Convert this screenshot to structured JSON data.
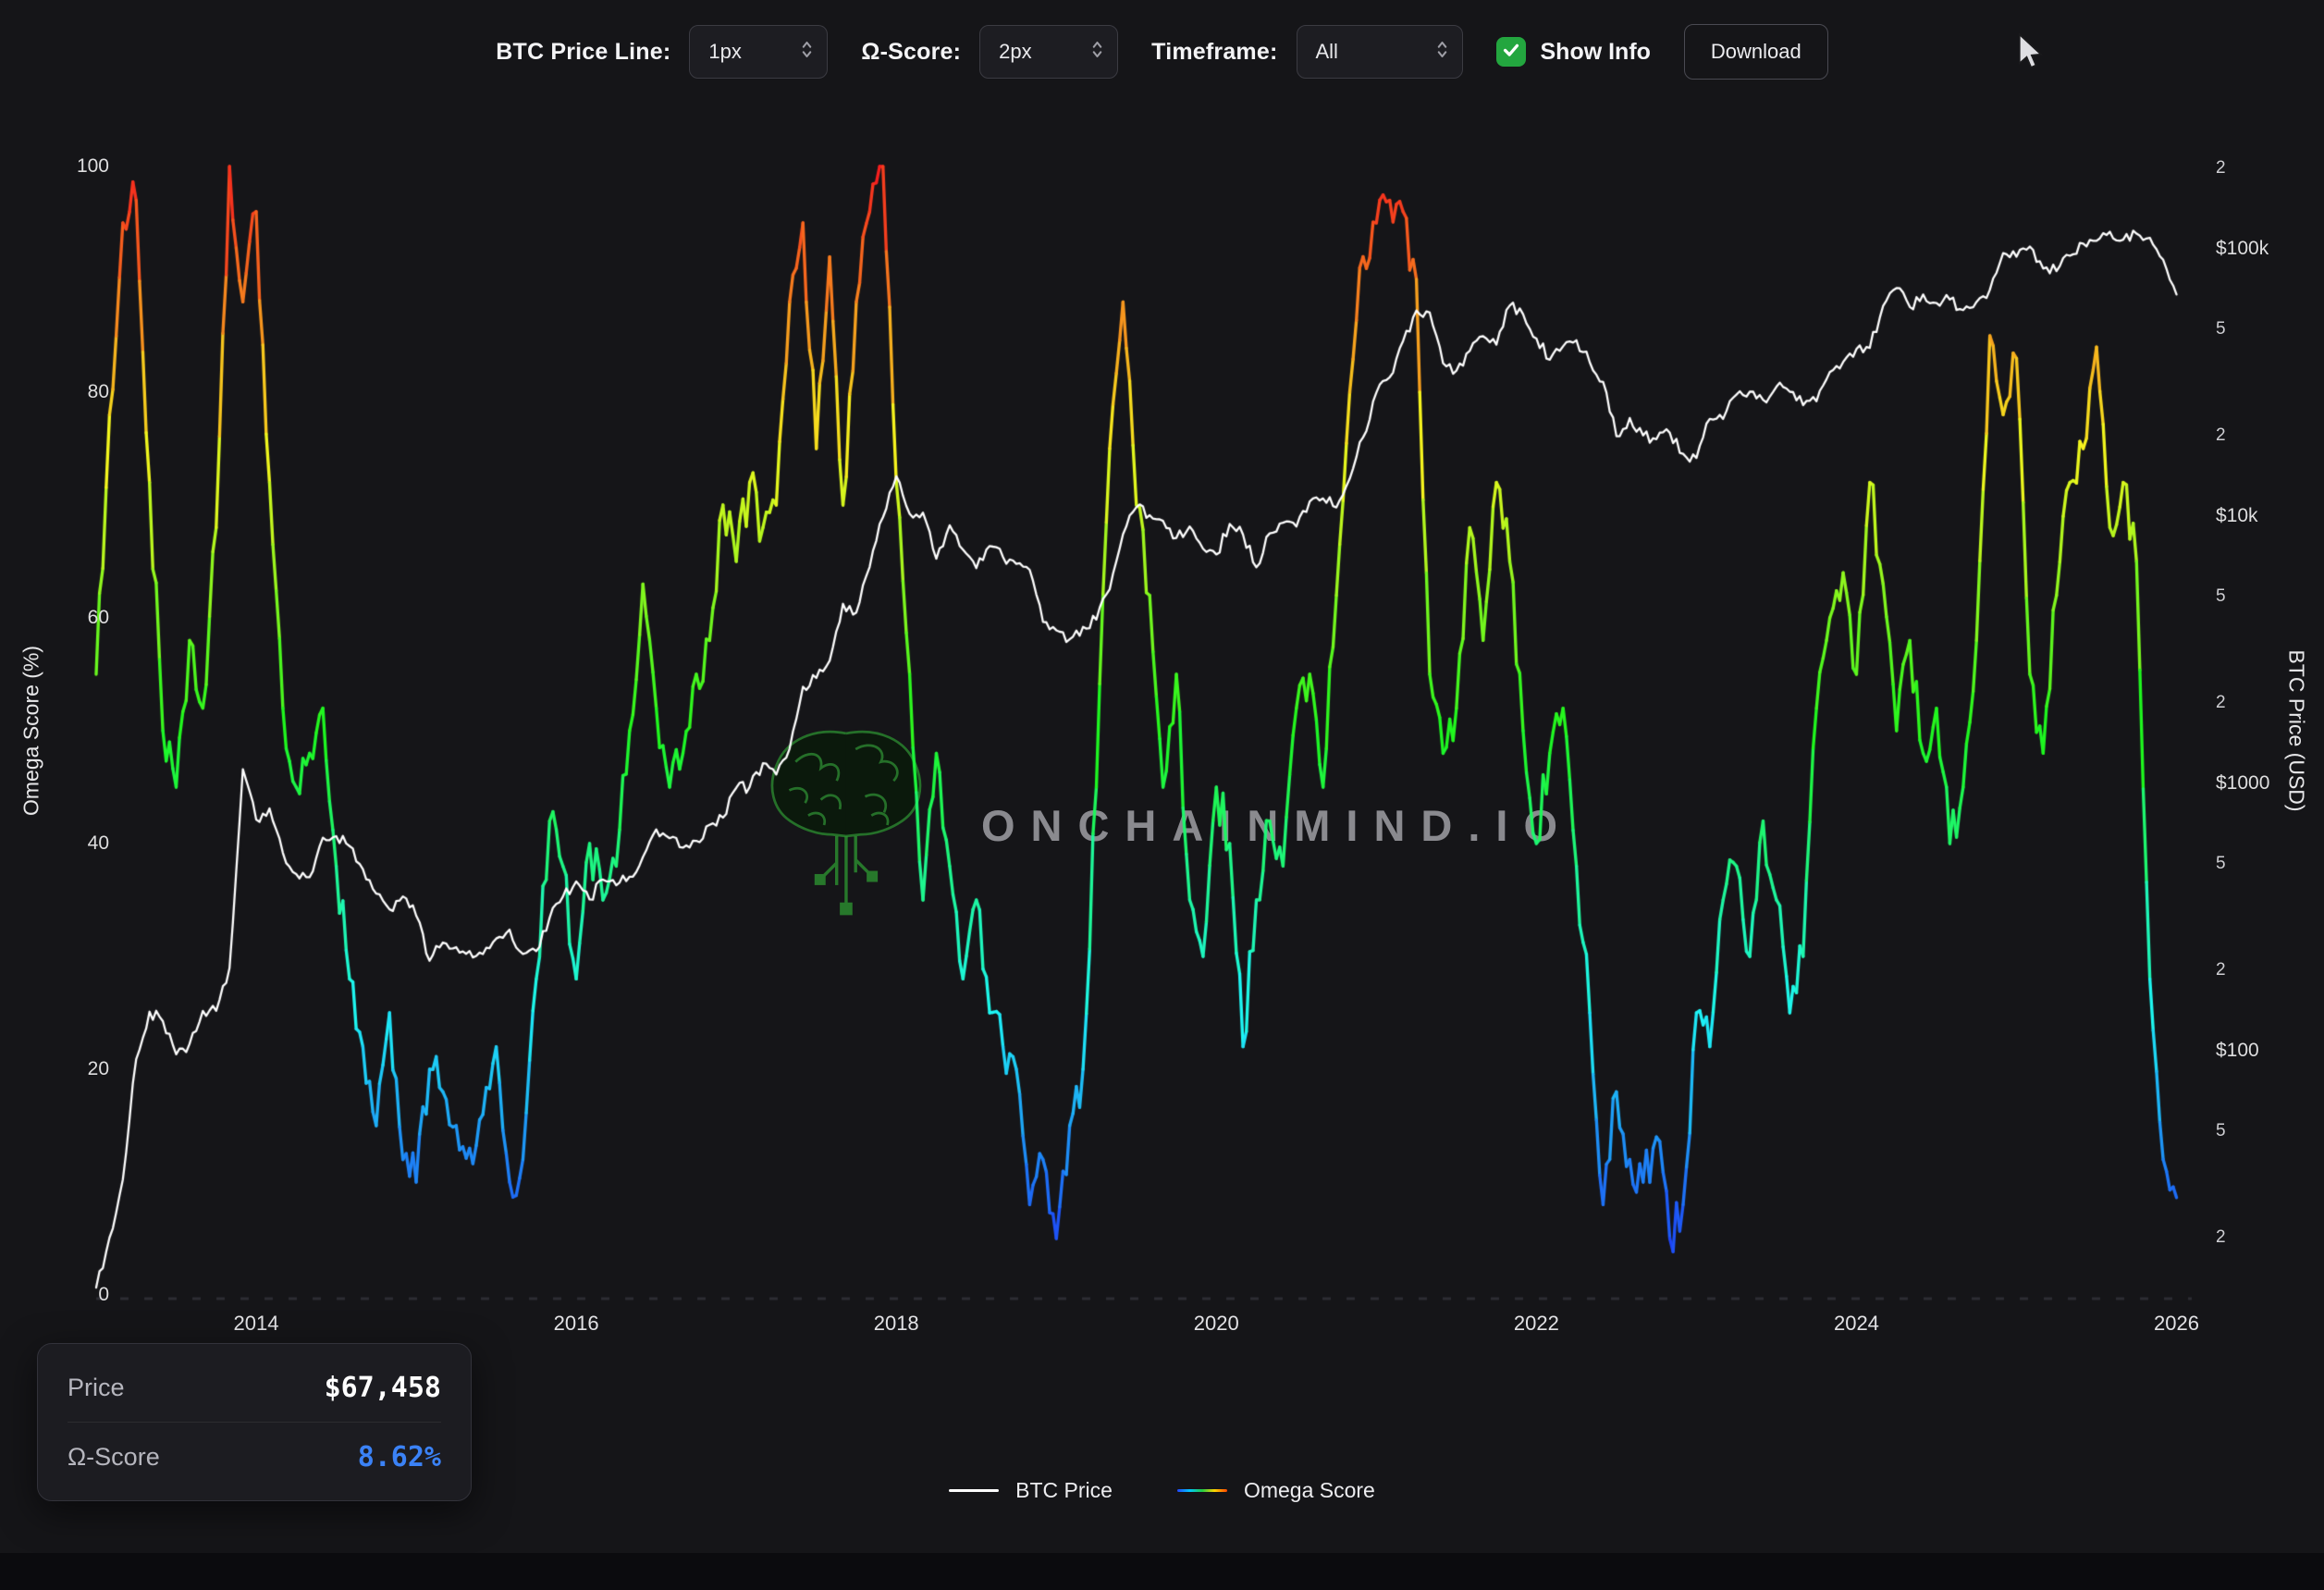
{
  "toolbar": {
    "btc_price_line": {
      "label": "BTC Price Line:",
      "value": "1px"
    },
    "omega_score": {
      "label": "Ω-Score:",
      "value": "2px"
    },
    "timeframe": {
      "label": "Timeframe:",
      "value": "All"
    },
    "show_info": {
      "label": "Show Info",
      "checked": true
    },
    "download": {
      "label": "Download"
    }
  },
  "watermark": {
    "text": "ONCHAINMIND.IO",
    "icon": "green-circuit-brain"
  },
  "info_box": {
    "price_label": "Price",
    "price_value": "$67,458",
    "omega_label": "Ω-Score",
    "omega_value": "8.62%",
    "omega_value_color": "#3b82f6"
  },
  "legend": [
    {
      "label": "BTC Price",
      "color": "#ffffff"
    },
    {
      "label": "Omega Score",
      "color": "rainbow-gradient"
    }
  ],
  "chart_data": {
    "type": "line",
    "title": "",
    "x_axis": {
      "range": [
        2013.0,
        2026.02
      ],
      "ticks": [
        {
          "label": "2014",
          "value": 2014
        },
        {
          "label": "2016",
          "value": 2016
        },
        {
          "label": "2018",
          "value": 2018
        },
        {
          "label": "2020",
          "value": 2020
        },
        {
          "label": "2022",
          "value": 2022
        },
        {
          "label": "2024",
          "value": 2024
        },
        {
          "label": "2026",
          "value": 2026
        }
      ]
    },
    "y_left": {
      "label": "Omega Score (%)",
      "range": [
        0,
        100
      ],
      "ticks": [
        0,
        20,
        40,
        60,
        80,
        100
      ]
    },
    "y_right": {
      "label": "BTC Price (USD)",
      "scale": "log",
      "ticks": [
        {
          "label": "2",
          "value": 200000,
          "minor": true
        },
        {
          "label": "$100k",
          "value": 100000,
          "minor": false
        },
        {
          "label": "5",
          "value": 50000,
          "minor": true
        },
        {
          "label": "2",
          "value": 20000,
          "minor": true
        },
        {
          "label": "$10k",
          "value": 10000,
          "minor": false
        },
        {
          "label": "5",
          "value": 5000,
          "minor": true
        },
        {
          "label": "2",
          "value": 2000,
          "minor": true
        },
        {
          "label": "$1000",
          "value": 1000,
          "minor": false
        },
        {
          "label": "5",
          "value": 500,
          "minor": true
        },
        {
          "label": "2",
          "value": 200,
          "minor": true
        },
        {
          "label": "$100",
          "value": 100,
          "minor": false
        },
        {
          "label": "5",
          "value": 50,
          "minor": true
        },
        {
          "label": "2",
          "value": 20,
          "minor": true
        }
      ]
    },
    "x_start": 2013.0,
    "x_step_years": 0.0833333,
    "series": [
      {
        "name": "BTC Price",
        "axis": "right",
        "color": "#ffffff",
        "values": [
          13,
          20,
          33,
          93,
          140,
          129,
          97,
          106,
          141,
          141,
          204,
          1130,
          732,
          806,
          550,
          458,
          446,
          627,
          635,
          583,
          478,
          387,
          338,
          378,
          320,
          217,
          254,
          244,
          236,
          230,
          263,
          284,
          230,
          236,
          314,
          377,
          430,
          368,
          437,
          416,
          448,
          531,
          673,
          624,
          575,
          610,
          700,
          745,
          963,
          970,
          1190,
          1080,
          1350,
          2300,
          2480,
          2875,
          4700,
          4360,
          6450,
          9900,
          14100,
          10200,
          10300,
          6930,
          9240,
          7490,
          6390,
          7730,
          7030,
          6630,
          6300,
          4020,
          3740,
          3460,
          3850,
          4100,
          5320,
          8560,
          10800,
          10080,
          9600,
          8290,
          9150,
          7550,
          7190,
          9350,
          8530,
          6440,
          8620,
          9450,
          9140,
          11350,
          11650,
          10780,
          13800,
          19700,
          29000,
          33100,
          45200,
          58800,
          57750,
          37300,
          35000,
          41500,
          47100,
          43800,
          61300,
          57000,
          46200,
          38500,
          43200,
          45500,
          37600,
          31800,
          19900,
          23300,
          20050,
          19400,
          20500,
          17100,
          16500,
          23100,
          23100,
          28500,
          29200,
          27200,
          30500,
          29200,
          26000,
          26900,
          34600,
          37700,
          42200,
          42600,
          61200,
          71300,
          60600,
          67500,
          62700,
          64600,
          59000,
          63300,
          70200,
          96400,
          93400,
          102000,
          84400,
          82500,
          94200,
          104600,
          107100,
          115800,
          108200,
          114000,
          110000,
          91000,
          67458
        ]
      },
      {
        "name": "Omega Score",
        "axis": "left",
        "colormap": "blue-low-to-red-high",
        "values": [
          55,
          78,
          95,
          97,
          72,
          50,
          45,
          58,
          52,
          68,
          100,
          88,
          96,
          72,
          52,
          45,
          48,
          52,
          38,
          28,
          22,
          15,
          25,
          12,
          10,
          20,
          18,
          15,
          13,
          16,
          22,
          10,
          12,
          28,
          42,
          38,
          28,
          40,
          35,
          38,
          50,
          63,
          52,
          45,
          48,
          55,
          58,
          70,
          65,
          72,
          68,
          70,
          88,
          95,
          75,
          92,
          70,
          88,
          96,
          100,
          72,
          55,
          35,
          48,
          38,
          28,
          35,
          25,
          22,
          20,
          8,
          12,
          5,
          15,
          20,
          45,
          75,
          88,
          70,
          62,
          45,
          55,
          35,
          30,
          45,
          40,
          22,
          35,
          42,
          38,
          52,
          55,
          45,
          62,
          80,
          92,
          95,
          97,
          96,
          90,
          55,
          48,
          52,
          68,
          58,
          72,
          65,
          50,
          40,
          48,
          52,
          38,
          25,
          8,
          18,
          12,
          10,
          14,
          5,
          8,
          25,
          22,
          35,
          38,
          30,
          42,
          35,
          25,
          30,
          52,
          60,
          64,
          55,
          72,
          63,
          50,
          58,
          48,
          52,
          40,
          45,
          58,
          85,
          78,
          83,
          55,
          48,
          62,
          72,
          75,
          84,
          68,
          72,
          65,
          28,
          12,
          8.62
        ]
      }
    ]
  }
}
